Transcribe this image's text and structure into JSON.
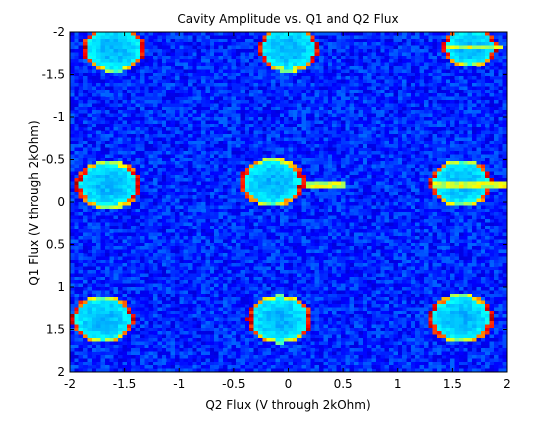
{
  "chart_data": {
    "type": "heatmap",
    "title": "Cavity Amplitude vs. Q1 and Q2 Flux",
    "xlabel": "Q2 Flux (V through 2kOhm)",
    "ylabel": "Q1 Flux (V through 2kOhm)",
    "xlim": [
      -2,
      2
    ],
    "ylim": [
      -2,
      2
    ],
    "y_direction": "reversed",
    "x_ticks": [
      -2,
      -1.5,
      -1,
      -0.5,
      0,
      0.5,
      1,
      1.5,
      2
    ],
    "x_tick_labels": [
      "-2",
      "-1.5",
      "-1",
      "-0.5",
      "0",
      "0.5",
      "1",
      "1.5",
      "2"
    ],
    "y_ticks": [
      -2,
      -1.5,
      -1,
      -0.5,
      0,
      0.5,
      1,
      1.5,
      2
    ],
    "y_tick_labels": [
      "-2",
      "-1.5",
      "-1",
      "-0.5",
      "0",
      "0.5",
      "1",
      "1.5",
      "2"
    ],
    "grid": false,
    "colormap": "jet",
    "background_level": 0.16,
    "blobs": [
      {
        "x": -1.6,
        "y": -1.8,
        "r": 0.29
      },
      {
        "x": 0.0,
        "y": -1.8,
        "r": 0.28
      },
      {
        "x": 1.66,
        "y": -1.82,
        "r": 0.25
      },
      {
        "x": -1.65,
        "y": -0.2,
        "r": 0.3
      },
      {
        "x": -0.15,
        "y": -0.23,
        "r": 0.3
      },
      {
        "x": 1.58,
        "y": -0.22,
        "r": 0.29
      },
      {
        "x": -1.7,
        "y": 1.38,
        "r": 0.29
      },
      {
        "x": -0.08,
        "y": 1.38,
        "r": 0.3
      },
      {
        "x": 1.58,
        "y": 1.37,
        "r": 0.3
      }
    ],
    "streaks": [
      {
        "x0": 0.15,
        "x1": 0.52,
        "y": -0.2
      },
      {
        "x0": 1.3,
        "x1": 2.0,
        "y": -0.2
      },
      {
        "x0": 1.45,
        "x1": 1.95,
        "y": -1.82
      }
    ]
  }
}
